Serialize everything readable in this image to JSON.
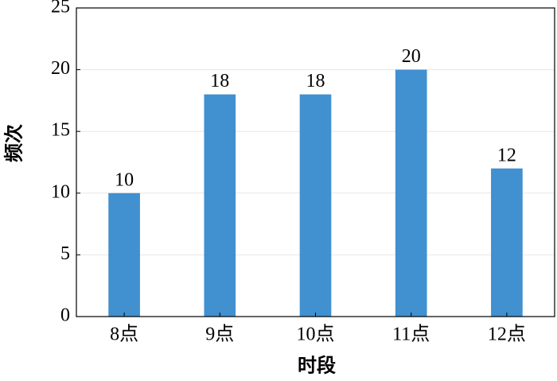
{
  "chart_data": {
    "type": "bar",
    "x_label": "时段",
    "y_label": "频次",
    "categories": [
      "8点",
      "9点",
      "10点",
      "11点",
      "12点"
    ],
    "values": [
      10,
      18,
      18,
      20,
      12
    ],
    "color": "#4190d0",
    "ylim": [
      0,
      25
    ],
    "yticks": [
      0,
      5,
      10,
      15,
      20,
      25
    ],
    "grid": true,
    "data_labels": true
  }
}
